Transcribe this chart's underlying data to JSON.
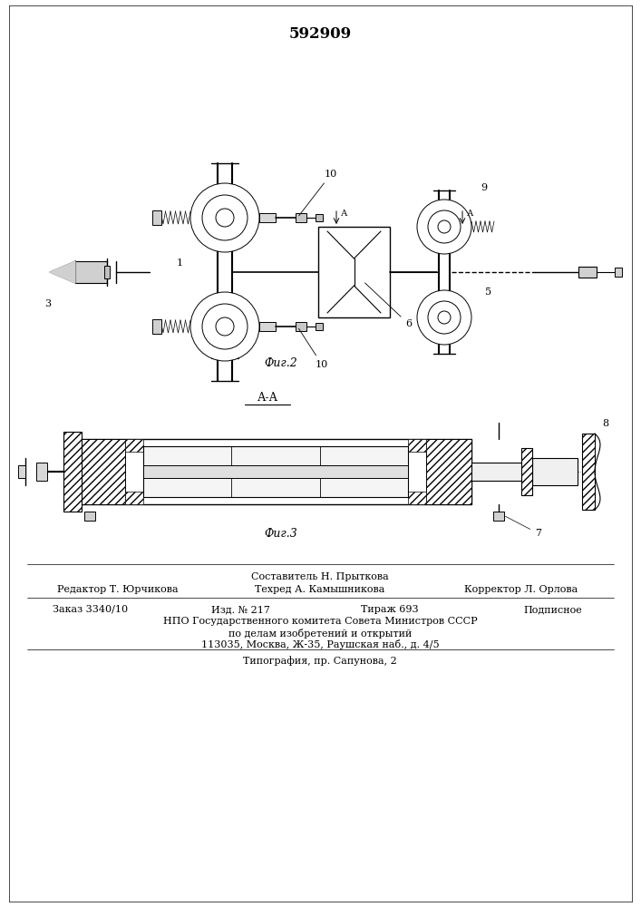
{
  "patent_number": "592909",
  "fig2_caption": "Фиг.2",
  "fig3_caption": "Фиг.3",
  "section_label": "А-А",
  "staff_line1": "Составитель Н. Прыткова",
  "staff_line2_col1": "Редактор Т. Юрчикова",
  "staff_line2_col2": "Техред А. Камышникова",
  "staff_line2_col3": "Корректор Л. Орлова",
  "staff_line3_col1": "Заказ 3340/10",
  "staff_line3_col2": "Изд. № 217",
  "staff_line3_col3": "Тираж 693",
  "staff_line3_col4": "Подписное",
  "npo_line1": "НПО Государственного комитета Совета Министров СССР",
  "npo_line2": "по делам изобретений и открытий",
  "npo_line3": "113035, Москва, Ж-35, Раушская наб., д. 4/5",
  "typo_line": "Типография, пр. Сапунова, 2",
  "bg_color": "#ffffff",
  "line_color": "#000000"
}
